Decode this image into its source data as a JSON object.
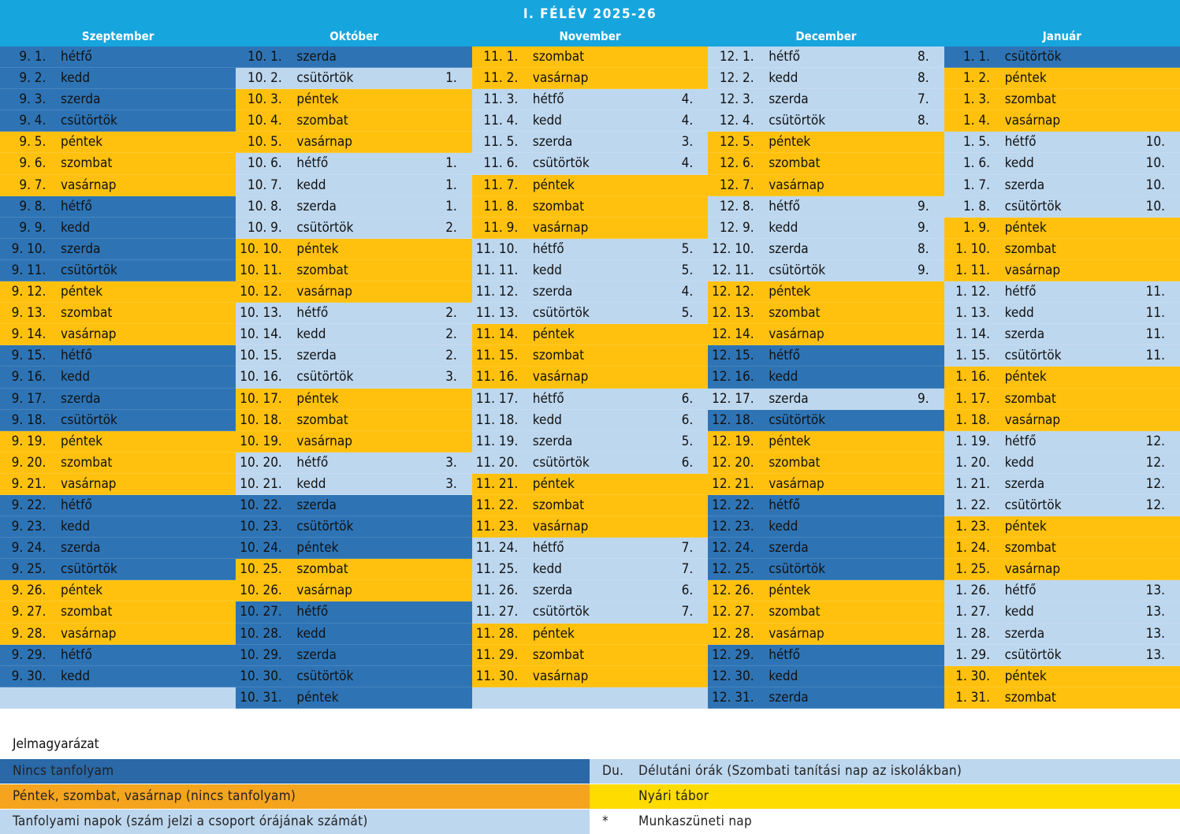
{
  "title": "I. FÉLÉV 2025-26",
  "colors": {
    "header": "#17a5de",
    "no_course": "#2e74b5",
    "weekend": "#ffc10e",
    "course": "#bdd7ee",
    "legend_no_course": "#2a68a7",
    "legend_weekend": "#f5a41e",
    "summer_camp": "#ffdc00"
  },
  "months": [
    {
      "name": "Szeptember",
      "days": [
        [
          "9. 1.",
          "hétfő",
          "",
          "n"
        ],
        [
          "9. 2.",
          "kedd",
          "",
          "n"
        ],
        [
          "9. 3.",
          "szerda",
          "",
          "n"
        ],
        [
          "9. 4.",
          "csütörtök",
          "",
          "n"
        ],
        [
          "9. 5.",
          "péntek",
          "",
          "w"
        ],
        [
          "9. 6.",
          "szombat",
          "",
          "w"
        ],
        [
          "9. 7.",
          "vasárnap",
          "",
          "w"
        ],
        [
          "9. 8.",
          "hétfő",
          "",
          "n"
        ],
        [
          "9. 9.",
          "kedd",
          "",
          "n"
        ],
        [
          "9. 10.",
          "szerda",
          "",
          "n"
        ],
        [
          "9. 11.",
          "csütörtök",
          "",
          "n"
        ],
        [
          "9. 12.",
          "péntek",
          "",
          "w"
        ],
        [
          "9. 13.",
          "szombat",
          "",
          "w"
        ],
        [
          "9. 14.",
          "vasárnap",
          "",
          "w"
        ],
        [
          "9. 15.",
          "hétfő",
          "",
          "n"
        ],
        [
          "9. 16.",
          "kedd",
          "",
          "n"
        ],
        [
          "9. 17.",
          "szerda",
          "",
          "n"
        ],
        [
          "9. 18.",
          "csütörtök",
          "",
          "n"
        ],
        [
          "9. 19.",
          "péntek",
          "",
          "w"
        ],
        [
          "9. 20.",
          "szombat",
          "",
          "w"
        ],
        [
          "9. 21.",
          "vasárnap",
          "",
          "w"
        ],
        [
          "9. 22.",
          "hétfő",
          "",
          "n"
        ],
        [
          "9. 23.",
          "kedd",
          "",
          "n"
        ],
        [
          "9. 24.",
          "szerda",
          "",
          "n"
        ],
        [
          "9. 25.",
          "csütörtök",
          "",
          "n"
        ],
        [
          "9. 26.",
          "péntek",
          "",
          "w"
        ],
        [
          "9. 27.",
          "szombat",
          "",
          "w"
        ],
        [
          "9. 28.",
          "vasárnap",
          "",
          "w"
        ],
        [
          "9. 29.",
          "hétfő",
          "",
          "n"
        ],
        [
          "9. 30.",
          "kedd",
          "",
          "n"
        ],
        [
          "",
          "",
          "",
          "e"
        ]
      ]
    },
    {
      "name": "Október",
      "days": [
        [
          "10. 1.",
          "szerda",
          "",
          "n"
        ],
        [
          "10. 2.",
          "csütörtök",
          "1.",
          "c"
        ],
        [
          "10. 3.",
          "péntek",
          "",
          "w"
        ],
        [
          "10. 4.",
          "szombat",
          "",
          "w"
        ],
        [
          "10. 5.",
          "vasárnap",
          "",
          "w"
        ],
        [
          "10. 6.",
          "hétfő",
          "1.",
          "c"
        ],
        [
          "10. 7.",
          "kedd",
          "1.",
          "c"
        ],
        [
          "10. 8.",
          "szerda",
          "1.",
          "c"
        ],
        [
          "10. 9.",
          "csütörtök",
          "2.",
          "c"
        ],
        [
          "10. 10.",
          "péntek",
          "",
          "w"
        ],
        [
          "10. 11.",
          "szombat",
          "",
          "w"
        ],
        [
          "10. 12.",
          "vasárnap",
          "",
          "w"
        ],
        [
          "10. 13.",
          "hétfő",
          "2.",
          "c"
        ],
        [
          "10. 14.",
          "kedd",
          "2.",
          "c"
        ],
        [
          "10. 15.",
          "szerda",
          "2.",
          "c"
        ],
        [
          "10. 16.",
          "csütörtök",
          "3.",
          "c"
        ],
        [
          "10. 17.",
          "péntek",
          "",
          "w"
        ],
        [
          "10. 18.",
          "szombat",
          "",
          "w"
        ],
        [
          "10. 19.",
          "vasárnap",
          "",
          "w"
        ],
        [
          "10. 20.",
          "hétfő",
          "3.",
          "c"
        ],
        [
          "10. 21.",
          "kedd",
          "3.",
          "c"
        ],
        [
          "10. 22.",
          "szerda",
          "",
          "n"
        ],
        [
          "10. 23.",
          "csütörtök",
          "",
          "n"
        ],
        [
          "10. 24.",
          "péntek",
          "",
          "n"
        ],
        [
          "10. 25.",
          "szombat",
          "",
          "w"
        ],
        [
          "10. 26.",
          "vasárnap",
          "",
          "w"
        ],
        [
          "10. 27.",
          "hétfő",
          "",
          "n"
        ],
        [
          "10. 28.",
          "kedd",
          "",
          "n"
        ],
        [
          "10. 29.",
          "szerda",
          "",
          "n"
        ],
        [
          "10. 30.",
          "csütörtök",
          "",
          "n"
        ],
        [
          "10. 31.",
          "péntek",
          "",
          "n"
        ]
      ]
    },
    {
      "name": "November",
      "days": [
        [
          "11. 1.",
          "szombat",
          "",
          "w"
        ],
        [
          "11. 2.",
          "vasárnap",
          "",
          "w"
        ],
        [
          "11. 3.",
          "hétfő",
          "4.",
          "c"
        ],
        [
          "11. 4.",
          "kedd",
          "4.",
          "c"
        ],
        [
          "11. 5.",
          "szerda",
          "3.",
          "c"
        ],
        [
          "11. 6.",
          "csütörtök",
          "4.",
          "c"
        ],
        [
          "11. 7.",
          "péntek",
          "",
          "w"
        ],
        [
          "11. 8.",
          "szombat",
          "",
          "w"
        ],
        [
          "11. 9.",
          "vasárnap",
          "",
          "w"
        ],
        [
          "11. 10.",
          "hétfő",
          "5.",
          "c"
        ],
        [
          "11. 11.",
          "kedd",
          "5.",
          "c"
        ],
        [
          "11. 12.",
          "szerda",
          "4.",
          "c"
        ],
        [
          "11. 13.",
          "csütörtök",
          "5.",
          "c"
        ],
        [
          "11. 14.",
          "péntek",
          "",
          "w"
        ],
        [
          "11. 15.",
          "szombat",
          "",
          "w"
        ],
        [
          "11. 16.",
          "vasárnap",
          "",
          "w"
        ],
        [
          "11. 17.",
          "hétfő",
          "6.",
          "c"
        ],
        [
          "11. 18.",
          "kedd",
          "6.",
          "c"
        ],
        [
          "11. 19.",
          "szerda",
          "5.",
          "c"
        ],
        [
          "11. 20.",
          "csütörtök",
          "6.",
          "c"
        ],
        [
          "11. 21.",
          "péntek",
          "",
          "w"
        ],
        [
          "11. 22.",
          "szombat",
          "",
          "w"
        ],
        [
          "11. 23.",
          "vasárnap",
          "",
          "w"
        ],
        [
          "11. 24.",
          "hétfő",
          "7.",
          "c"
        ],
        [
          "11. 25.",
          "kedd",
          "7.",
          "c"
        ],
        [
          "11. 26.",
          "szerda",
          "6.",
          "c"
        ],
        [
          "11. 27.",
          "csütörtök",
          "7.",
          "c"
        ],
        [
          "11. 28.",
          "péntek",
          "",
          "w"
        ],
        [
          "11. 29.",
          "szombat",
          "",
          "w"
        ],
        [
          "11. 30.",
          "vasárnap",
          "",
          "w"
        ],
        [
          "",
          "",
          "",
          "e"
        ]
      ]
    },
    {
      "name": "December",
      "days": [
        [
          "12. 1.",
          "hétfő",
          "8.",
          "c"
        ],
        [
          "12. 2.",
          "kedd",
          "8.",
          "c"
        ],
        [
          "12. 3.",
          "szerda",
          "7.",
          "c"
        ],
        [
          "12. 4.",
          "csütörtök",
          "8.",
          "c"
        ],
        [
          "12. 5.",
          "péntek",
          "",
          "w"
        ],
        [
          "12. 6.",
          "szombat",
          "",
          "w"
        ],
        [
          "12. 7.",
          "vasárnap",
          "",
          "w"
        ],
        [
          "12. 8.",
          "hétfő",
          "9.",
          "c"
        ],
        [
          "12. 9.",
          "kedd",
          "9.",
          "c"
        ],
        [
          "12. 10.",
          "szerda",
          "8.",
          "c"
        ],
        [
          "12. 11.",
          "csütörtök",
          "9.",
          "c"
        ],
        [
          "12. 12.",
          "péntek",
          "",
          "w"
        ],
        [
          "12. 13.",
          "szombat",
          "",
          "w"
        ],
        [
          "12. 14.",
          "vasárnap",
          "",
          "w"
        ],
        [
          "12. 15.",
          "hétfő",
          "",
          "n"
        ],
        [
          "12. 16.",
          "kedd",
          "",
          "n"
        ],
        [
          "12. 17.",
          "szerda",
          "9.",
          "c"
        ],
        [
          "12. 18.",
          "csütörtök",
          "",
          "n"
        ],
        [
          "12. 19.",
          "péntek",
          "",
          "w"
        ],
        [
          "12. 20.",
          "szombat",
          "",
          "w"
        ],
        [
          "12. 21.",
          "vasárnap",
          "",
          "w"
        ],
        [
          "12. 22.",
          "hétfő",
          "",
          "n"
        ],
        [
          "12. 23.",
          "kedd",
          "",
          "n"
        ],
        [
          "12. 24.",
          "szerda",
          "",
          "n"
        ],
        [
          "12. 25.",
          "csütörtök",
          "",
          "n"
        ],
        [
          "12. 26.",
          "péntek",
          "",
          "w"
        ],
        [
          "12. 27.",
          "szombat",
          "",
          "w"
        ],
        [
          "12. 28.",
          "vasárnap",
          "",
          "w"
        ],
        [
          "12. 29.",
          "hétfő",
          "",
          "n"
        ],
        [
          "12. 30.",
          "kedd",
          "",
          "n"
        ],
        [
          "12. 31.",
          "szerda",
          "",
          "n"
        ]
      ]
    },
    {
      "name": "Január",
      "days": [
        [
          "1. 1.",
          "csütörtök",
          "",
          "n"
        ],
        [
          "1. 2.",
          "péntek",
          "",
          "w"
        ],
        [
          "1. 3.",
          "szombat",
          "",
          "w"
        ],
        [
          "1. 4.",
          "vasárnap",
          "",
          "w"
        ],
        [
          "1. 5.",
          "hétfő",
          "10.",
          "c"
        ],
        [
          "1. 6.",
          "kedd",
          "10.",
          "c"
        ],
        [
          "1. 7.",
          "szerda",
          "10.",
          "c"
        ],
        [
          "1. 8.",
          "csütörtök",
          "10.",
          "c"
        ],
        [
          "1. 9.",
          "péntek",
          "",
          "w"
        ],
        [
          "1. 10.",
          "szombat",
          "",
          "w"
        ],
        [
          "1. 11.",
          "vasárnap",
          "",
          "w"
        ],
        [
          "1. 12.",
          "hétfő",
          "11.",
          "c"
        ],
        [
          "1. 13.",
          "kedd",
          "11.",
          "c"
        ],
        [
          "1. 14.",
          "szerda",
          "11.",
          "c"
        ],
        [
          "1. 15.",
          "csütörtök",
          "11.",
          "c"
        ],
        [
          "1. 16.",
          "péntek",
          "",
          "w"
        ],
        [
          "1. 17.",
          "szombat",
          "",
          "w"
        ],
        [
          "1. 18.",
          "vasárnap",
          "",
          "w"
        ],
        [
          "1. 19.",
          "hétfő",
          "12.",
          "c"
        ],
        [
          "1. 20.",
          "kedd",
          "12.",
          "c"
        ],
        [
          "1. 21.",
          "szerda",
          "12.",
          "c"
        ],
        [
          "1. 22.",
          "csütörtök",
          "12.",
          "c"
        ],
        [
          "1. 23.",
          "péntek",
          "",
          "w"
        ],
        [
          "1. 24.",
          "szombat",
          "",
          "w"
        ],
        [
          "1. 25.",
          "vasárnap",
          "",
          "w"
        ],
        [
          "1. 26.",
          "hétfő",
          "13.",
          "c"
        ],
        [
          "1. 27.",
          "kedd",
          "13.",
          "c"
        ],
        [
          "1. 28.",
          "szerda",
          "13.",
          "c"
        ],
        [
          "1. 29.",
          "csütörtök",
          "13.",
          "c"
        ],
        [
          "1. 30.",
          "péntek",
          "",
          "w"
        ],
        [
          "1. 31.",
          "szombat",
          "",
          "w"
        ]
      ]
    }
  ],
  "legend": {
    "title": "Jelmagyarázat",
    "no_course": "Nincs tanfolyam",
    "weekend": "Péntek, szombat, vasárnap (nincs tanfolyam)",
    "course": "Tanfolyami napok (szám jelzi a csoport órájának számát)",
    "afternoon_key": "Du.",
    "afternoon": "Délutáni órák (Szombati tanítási nap az iskolákban)",
    "camp_key": "",
    "camp": "Nyári tábor",
    "holiday_key": "*",
    "holiday": "Munkaszüneti nap"
  }
}
